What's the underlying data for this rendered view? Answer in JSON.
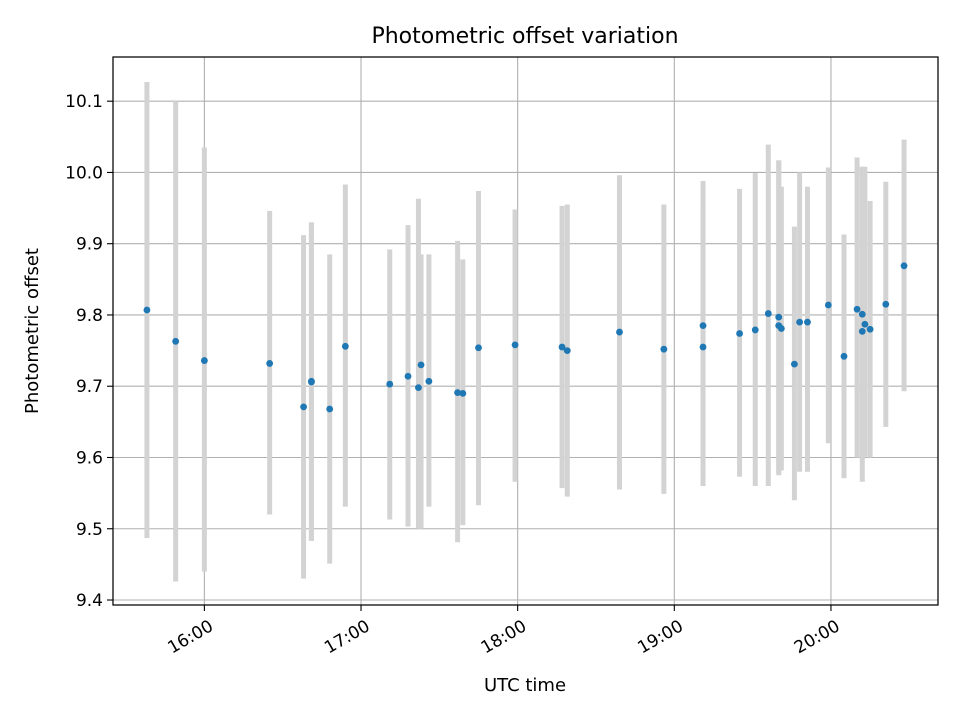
{
  "chart_data": {
    "type": "scatter",
    "title": "Photometric offset variation",
    "xlabel": "UTC time",
    "ylabel": "Photometric offset",
    "x_ticks": [
      "16:00",
      "17:00",
      "18:00",
      "19:00",
      "20:00"
    ],
    "y_ticks": [
      "9.4",
      "9.5",
      "9.6",
      "9.7",
      "9.8",
      "9.9",
      "10.0",
      "10.1"
    ],
    "xlim": [
      "15:25",
      "20:41"
    ],
    "ylim": [
      9.393,
      10.162
    ],
    "grid": true,
    "error_bar_color": "#d3d3d3",
    "point_color": "#1f77b4",
    "series": [
      {
        "x": [
          "15:38",
          "15:49",
          "16:00",
          "16:25",
          "16:38",
          "16:41",
          "16:41",
          "16:48",
          "16:54",
          "17:11",
          "17:18",
          "17:22",
          "17:23",
          "17:26",
          "17:37",
          "17:39",
          "17:45",
          "17:59",
          "18:17",
          "18:19",
          "18:39",
          "18:56",
          "19:11",
          "19:11",
          "19:25",
          "19:31",
          "19:36",
          "19:40",
          "19:40",
          "19:41",
          "19:46",
          "19:48",
          "19:51",
          "19:59",
          "20:05",
          "20:10",
          "20:12",
          "20:12",
          "20:13",
          "20:15",
          "20:21",
          "20:28"
        ],
        "y": [
          9.807,
          9.763,
          9.736,
          9.732,
          9.671,
          9.707,
          9.706,
          9.668,
          9.756,
          9.703,
          9.714,
          9.698,
          9.73,
          9.707,
          9.691,
          9.69,
          9.754,
          9.758,
          9.755,
          9.75,
          9.776,
          9.752,
          9.785,
          9.755,
          9.774,
          9.779,
          9.802,
          9.785,
          9.797,
          9.781,
          9.731,
          9.79,
          9.79,
          9.814,
          9.742,
          9.808,
          9.801,
          9.777,
          9.787,
          9.78,
          9.815,
          9.869
        ],
        "err_low": [
          9.487,
          9.426,
          9.44,
          9.52,
          9.43,
          9.483,
          9.483,
          9.451,
          9.531,
          9.513,
          9.503,
          9.5,
          9.5,
          9.531,
          9.481,
          9.505,
          9.533,
          9.566,
          9.557,
          9.545,
          9.555,
          9.549,
          9.585,
          9.56,
          9.573,
          9.56,
          9.56,
          9.575,
          9.578,
          9.582,
          9.54,
          9.58,
          9.58,
          9.62,
          9.571,
          9.6,
          9.598,
          9.566,
          9.601,
          9.6,
          9.643,
          9.693
        ],
        "err_high": [
          10.127,
          10.1,
          10.035,
          9.946,
          9.912,
          9.93,
          9.93,
          9.885,
          9.983,
          9.892,
          9.926,
          9.963,
          9.885,
          9.885,
          9.904,
          9.878,
          9.974,
          9.948,
          9.953,
          9.955,
          9.996,
          9.955,
          9.988,
          9.95,
          9.977,
          9.999,
          10.039,
          10.017,
          10.017,
          9.98,
          9.924,
          10.0,
          9.98,
          10.007,
          9.913,
          10.021,
          10.008,
          10.008,
          10.008,
          9.96,
          9.987,
          10.046
        ]
      }
    ]
  }
}
